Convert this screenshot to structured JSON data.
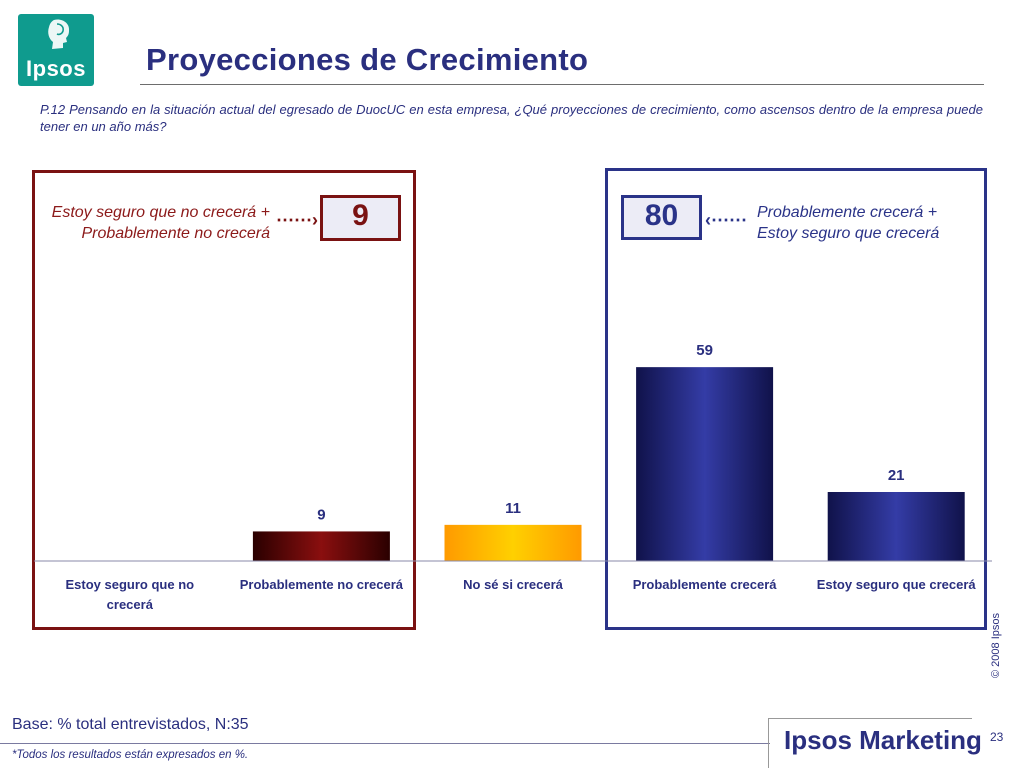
{
  "header": {
    "logo_text": "Ipsos",
    "title": "Proyecciones de Crecimiento",
    "question": "P.12 Pensando en la situación actual del egresado de DuocUC en  esta empresa, ¿Qué  proyecciones de crecimiento, como ascensos dentro de la empresa  puede tener en un año más?"
  },
  "groups": {
    "negative": {
      "label": "Estoy seguro que no crecerá + Probablemente no crecerá",
      "total": "9",
      "color": "#7a1212"
    },
    "positive": {
      "label": "Probablemente crecerá + Estoy seguro que crecerá",
      "total": "80",
      "color": "#2a3388"
    }
  },
  "chart_data": {
    "type": "bar",
    "categories": [
      [
        "Estoy seguro que no",
        "crecerá"
      ],
      [
        "Probablemente no crecerá"
      ],
      [
        "No sé si crecerá"
      ],
      [
        "Probablemente crecerá"
      ],
      [
        "Estoy seguro que crecerá"
      ]
    ],
    "values": [
      null,
      9,
      11,
      59,
      21
    ],
    "data_labels": [
      "",
      "9",
      "11",
      "59",
      "21"
    ],
    "bar_colors": [
      "#7a1212",
      "#7a1212",
      "#ffb300",
      "#2a3388",
      "#2a3388"
    ],
    "ylim": [
      0,
      70
    ],
    "grid": false,
    "legend": "none"
  },
  "footer": {
    "base": "Base: % total entrevistados, N:35",
    "note": "*Todos los resultados están expresados en %.",
    "brand": "Ipsos Marketing",
    "page_number": "23",
    "copyright": "© 2008 Ipsos"
  }
}
